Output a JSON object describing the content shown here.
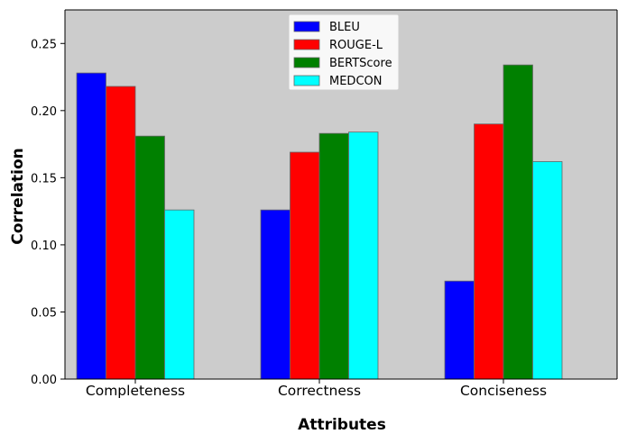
{
  "chart_data": {
    "type": "bar",
    "title": "",
    "xlabel": "Attributes",
    "ylabel": "Correlation",
    "categories": [
      "Completeness",
      "Correctness",
      "Conciseness"
    ],
    "series": [
      {
        "name": "BLEU",
        "color": "#0000ff",
        "values": [
          0.228,
          0.126,
          0.073
        ]
      },
      {
        "name": "ROUGE-L",
        "color": "#ff0000",
        "values": [
          0.218,
          0.169,
          0.19
        ]
      },
      {
        "name": "BERTScore",
        "color": "#008000",
        "values": [
          0.181,
          0.183,
          0.234
        ]
      },
      {
        "name": "MEDCON",
        "color": "#00ffff",
        "values": [
          0.126,
          0.184,
          0.162
        ]
      }
    ],
    "ylim": [
      0,
      0.275
    ],
    "yticks": [
      "0.00",
      "0.05",
      "0.10",
      "0.15",
      "0.20",
      "0.25"
    ],
    "plot_background": "#cccccc",
    "grid": false,
    "legend": "top-center"
  }
}
